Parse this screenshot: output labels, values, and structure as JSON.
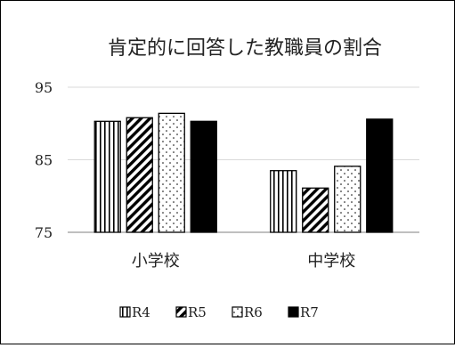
{
  "chart_data": {
    "type": "bar",
    "title": "肯定的に回答した教職員の割合",
    "xlabel": "",
    "ylabel": "",
    "categories": [
      "小学校",
      "中学校"
    ],
    "series": [
      {
        "name": "R4",
        "values": [
          90.3,
          83.5
        ]
      },
      {
        "name": "R5",
        "values": [
          90.8,
          81.1
        ]
      },
      {
        "name": "R6",
        "values": [
          91.4,
          84.1
        ]
      },
      {
        "name": "R7",
        "values": [
          90.3,
          90.6
        ]
      }
    ],
    "ylim": [
      75,
      95
    ],
    "yticks": [
      "75",
      "85",
      "95"
    ],
    "legend_position": "bottom",
    "grid": true
  }
}
